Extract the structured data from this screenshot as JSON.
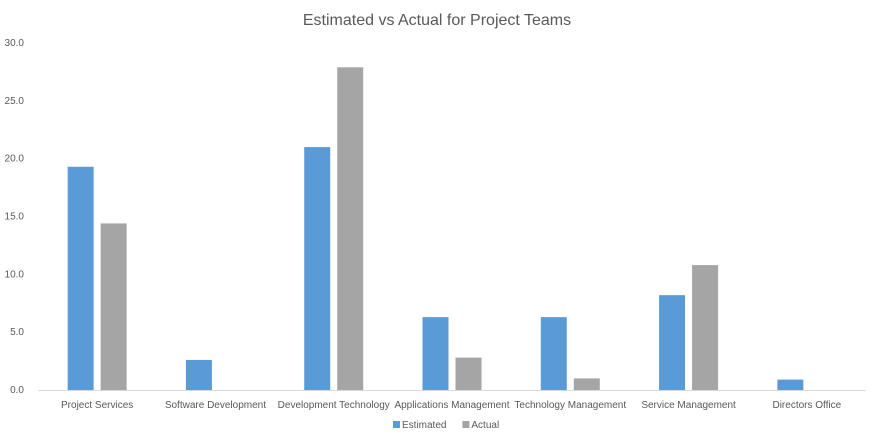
{
  "chart_data": {
    "type": "bar",
    "title": "Estimated vs Actual for Project Teams",
    "categories": [
      "Project Services",
      "Software Development",
      "Development Technology",
      "Applications Management",
      "Technology Management",
      "Service Management",
      "Directors Office"
    ],
    "series": [
      {
        "name": "Estimated",
        "color": "#5b9bd5",
        "values": [
          19.3,
          2.6,
          21.0,
          6.3,
          6.3,
          8.2,
          0.9
        ]
      },
      {
        "name": "Actual",
        "color": "#a5a5a5",
        "values": [
          14.4,
          0.0,
          27.9,
          2.8,
          1.0,
          10.8,
          0.0
        ]
      }
    ],
    "ylim": [
      0,
      30
    ],
    "yticks": [
      "0.0",
      "5.0",
      "10.0",
      "15.0",
      "20.0",
      "25.0",
      "30.0"
    ],
    "grid": false,
    "legend_position": "bottom"
  }
}
